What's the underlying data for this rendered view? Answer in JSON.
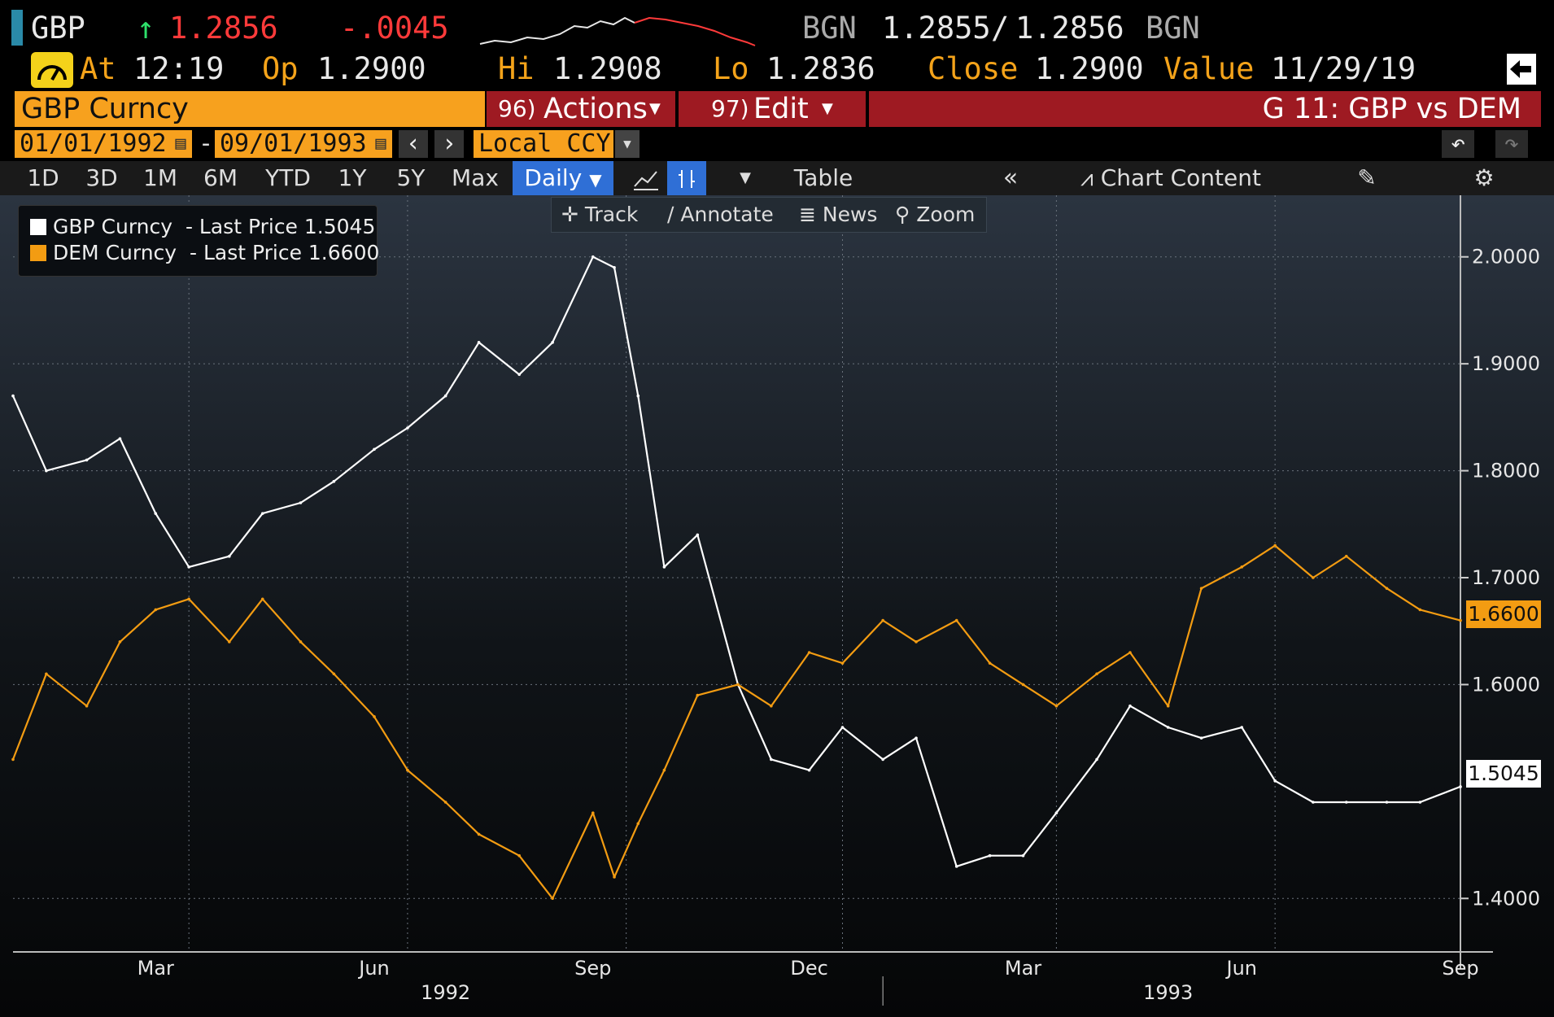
{
  "quote": {
    "ticker": "GBP",
    "arrow": "↑",
    "last": "1.2856",
    "change": "-.0045",
    "bid_source": "BGN",
    "bid_ask": "1.2855",
    "separator": "/",
    "ask": "1.2856",
    "ask_source": "BGN",
    "at_label": "At",
    "time": "12:19",
    "op_label": "Op",
    "open": "1.2900",
    "hi_label": "Hi",
    "high": "1.2908",
    "lo_label": "Lo",
    "low": "1.2836",
    "close_label": "Close",
    "close": "1.2900",
    "value_label": "Value",
    "value_date": "11/29/19"
  },
  "menubar": {
    "security": "GBP Curncy",
    "actions_num": "96)",
    "actions": "Actions",
    "edit_num": "97)",
    "edit": "Edit",
    "title": "G 11: GBP vs DEM"
  },
  "range": {
    "start": "01/01/1992",
    "dash": "-",
    "end": "09/01/1993",
    "currency": "Local CCY"
  },
  "toolbar": {
    "periods": [
      "1D",
      "3D",
      "1M",
      "6M",
      "YTD",
      "1Y",
      "5Y",
      "Max"
    ],
    "frequency": "Daily",
    "table": "Table",
    "chart_content": "Chart Content"
  },
  "chart_tools": {
    "track": "Track",
    "annotate": "Annotate",
    "news": "News",
    "zoom": "Zoom"
  },
  "legend": [
    {
      "label": "GBP Curncy  - Last Price 1.5045",
      "color": "#ffffff"
    },
    {
      "label": "DEM Curncy  - Last Price 1.6600",
      "color": "#f39c12"
    }
  ],
  "price_tags": {
    "dem": "1.6600",
    "gbp": "1.5045"
  },
  "chart_data": {
    "type": "line",
    "y_ticks": [
      "2.0000",
      "1.9000",
      "1.8000",
      "1.7000",
      "1.6000",
      "1.4000"
    ],
    "ylim": [
      1.35,
      2.05
    ],
    "x_month_labels": [
      "Mar",
      "Jun",
      "Sep",
      "Dec",
      "Mar",
      "Jun",
      "Sep"
    ],
    "x_year_labels": [
      "1992",
      "1993"
    ],
    "x_start": "1992-01-01",
    "x_end": "1993-09-01",
    "grid": true,
    "legend_position": "top-left",
    "series": [
      {
        "name": "GBP Curncy",
        "color": "#ffffff",
        "last": 1.5045,
        "x": [
          "1992-01-01",
          "1992-01-15",
          "1992-02-01",
          "1992-02-15",
          "1992-03-01",
          "1992-03-15",
          "1992-04-01",
          "1992-04-15",
          "1992-05-01",
          "1992-05-15",
          "1992-06-01",
          "1992-06-15",
          "1992-07-01",
          "1992-07-15",
          "1992-08-01",
          "1992-08-15",
          "1992-09-01",
          "1992-09-10",
          "1992-09-20",
          "1992-10-01",
          "1992-10-15",
          "1992-11-01",
          "1992-11-15",
          "1992-12-01",
          "1992-12-15",
          "1993-01-01",
          "1993-01-15",
          "1993-02-01",
          "1993-02-15",
          "1993-03-01",
          "1993-03-15",
          "1993-04-01",
          "1993-04-15",
          "1993-05-01",
          "1993-05-15",
          "1993-06-01",
          "1993-06-15",
          "1993-07-01",
          "1993-07-15",
          "1993-08-01",
          "1993-08-15",
          "1993-09-01"
        ],
        "y": [
          1.87,
          1.8,
          1.81,
          1.83,
          1.76,
          1.71,
          1.72,
          1.76,
          1.77,
          1.79,
          1.82,
          1.84,
          1.87,
          1.92,
          1.89,
          1.92,
          2.0,
          1.99,
          1.87,
          1.71,
          1.74,
          1.6,
          1.53,
          1.52,
          1.56,
          1.53,
          1.55,
          1.43,
          1.44,
          1.44,
          1.48,
          1.53,
          1.58,
          1.56,
          1.55,
          1.56,
          1.51,
          1.49,
          1.49,
          1.49,
          1.49,
          1.5045
        ]
      },
      {
        "name": "DEM Curncy",
        "color": "#f39c12",
        "last": 1.66,
        "x": [
          "1992-01-01",
          "1992-01-15",
          "1992-02-01",
          "1992-02-15",
          "1992-03-01",
          "1992-03-15",
          "1992-04-01",
          "1992-04-15",
          "1992-05-01",
          "1992-05-15",
          "1992-06-01",
          "1992-06-15",
          "1992-07-01",
          "1992-07-15",
          "1992-08-01",
          "1992-08-15",
          "1992-09-01",
          "1992-09-10",
          "1992-09-20",
          "1992-10-01",
          "1992-10-15",
          "1992-11-01",
          "1992-11-15",
          "1992-12-01",
          "1992-12-15",
          "1993-01-01",
          "1993-01-15",
          "1993-02-01",
          "1993-02-15",
          "1993-03-01",
          "1993-03-15",
          "1993-04-01",
          "1993-04-15",
          "1993-05-01",
          "1993-05-15",
          "1993-06-01",
          "1993-06-15",
          "1993-07-01",
          "1993-07-15",
          "1993-08-01",
          "1993-08-15",
          "1993-09-01"
        ],
        "y": [
          1.53,
          1.61,
          1.58,
          1.64,
          1.67,
          1.68,
          1.64,
          1.68,
          1.64,
          1.61,
          1.57,
          1.52,
          1.49,
          1.46,
          1.44,
          1.4,
          1.48,
          1.42,
          1.47,
          1.52,
          1.59,
          1.6,
          1.58,
          1.63,
          1.62,
          1.66,
          1.64,
          1.66,
          1.62,
          1.6,
          1.58,
          1.61,
          1.63,
          1.58,
          1.69,
          1.71,
          1.73,
          1.7,
          1.72,
          1.69,
          1.67,
          1.66
        ]
      }
    ]
  }
}
